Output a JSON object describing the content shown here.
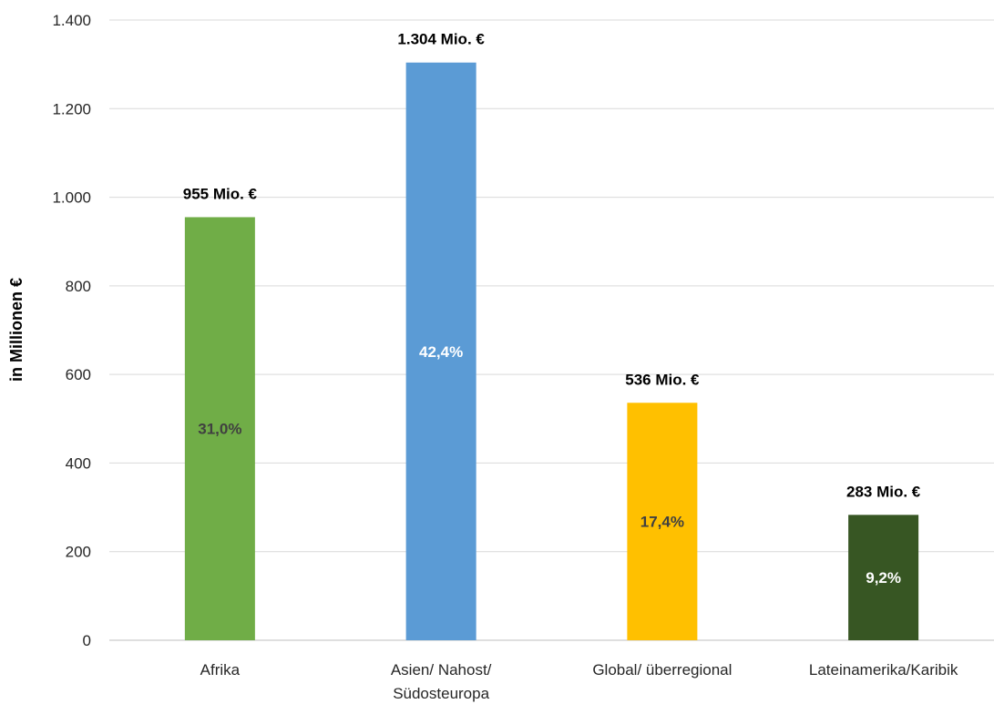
{
  "chart_data": {
    "type": "bar",
    "title": "",
    "xlabel": "",
    "ylabel": "in Millionen €",
    "ylim": [
      0,
      1400
    ],
    "yticks": [
      0,
      200,
      400,
      600,
      800,
      1000,
      1200,
      1400
    ],
    "ytick_labels": [
      "0",
      "200",
      "400",
      "600",
      "800",
      "1.000",
      "1.200",
      "1.400"
    ],
    "grid": true,
    "legend": "none",
    "categories": [
      [
        "Afrika"
      ],
      [
        "Asien/ Nahost/",
        "Südosteuropa"
      ],
      [
        "Global/ überregional"
      ],
      [
        "Lateinamerika/Karibik"
      ]
    ],
    "values": [
      955,
      1304,
      536,
      283
    ],
    "value_labels": [
      "955 Mio. €",
      "1.304 Mio. €",
      "536 Mio. €",
      "283 Mio. €"
    ],
    "share_labels": [
      "31,0%",
      "42,4%",
      "17,4%",
      "9,2%"
    ],
    "bar_colors": [
      "#70AD47",
      "#5B9BD5",
      "#FFC000",
      "#375623"
    ],
    "share_label_colors": [
      "#404040",
      "#ffffff",
      "#404040",
      "#ffffff"
    ]
  }
}
